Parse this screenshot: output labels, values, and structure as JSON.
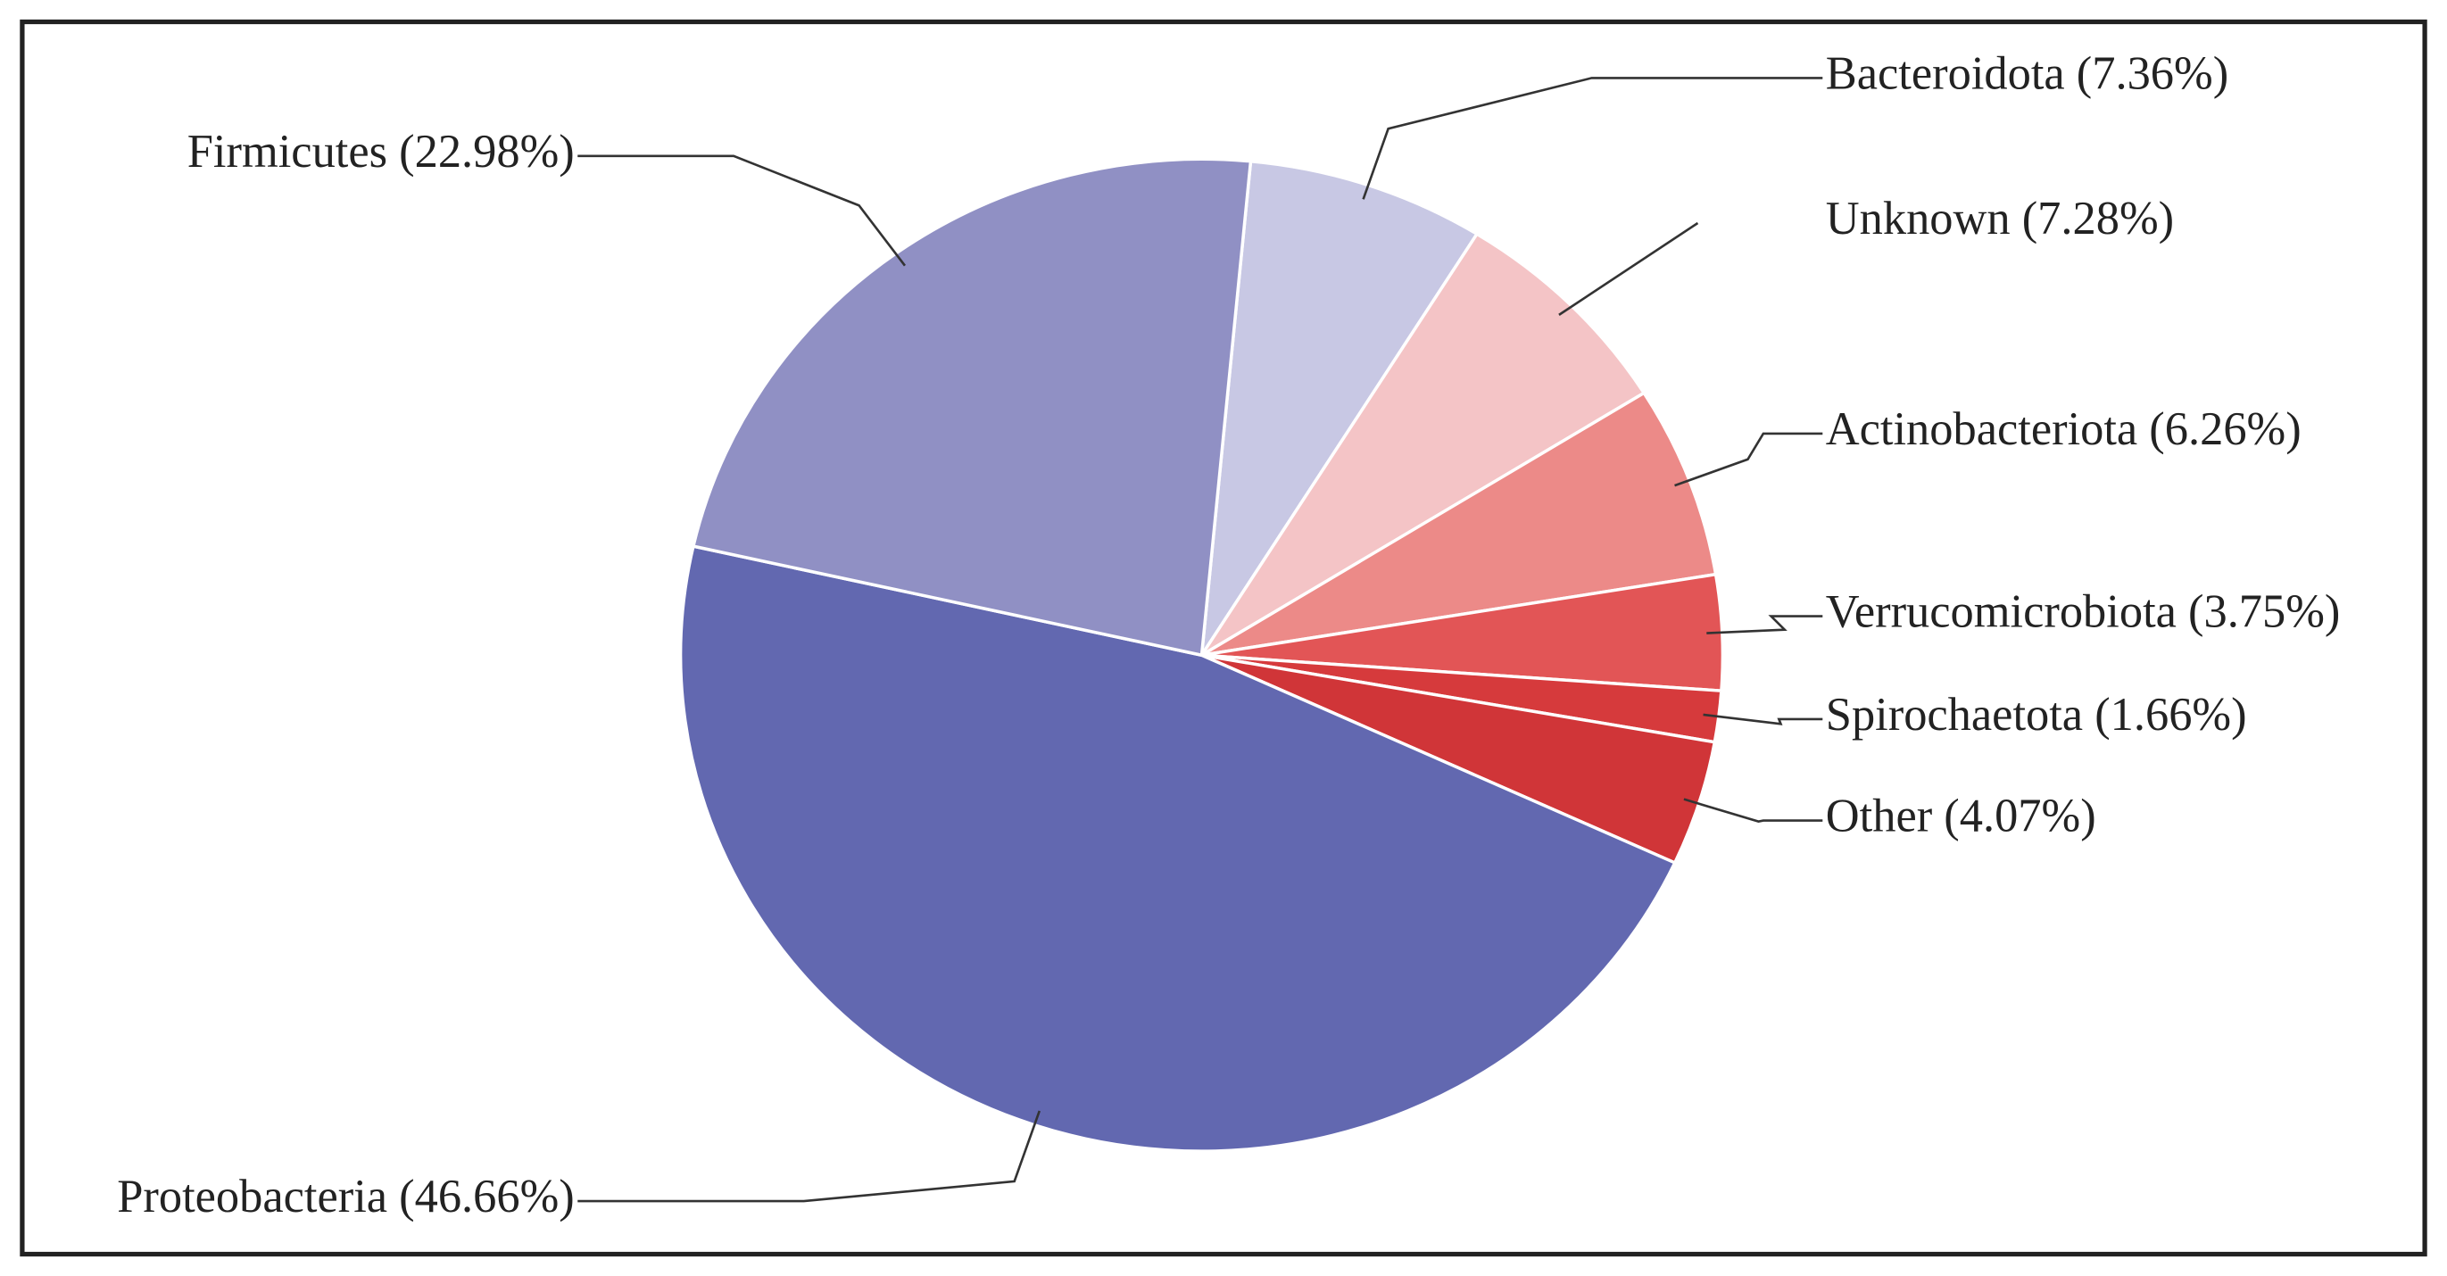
{
  "chart_data": {
    "type": "pie",
    "categories": [
      "Bacteroidota (7.36%)",
      "Unknown (7.28%)",
      "Actinobacteriota (6.26%)",
      "Verrucomicrobiota (3.75%)",
      "Spirochaetota (1.66%)",
      "Other (4.07%)",
      "Proteobacteria (46.66%)",
      "Firmicutes (22.98%)"
    ],
    "values": [
      7.36,
      7.28,
      6.26,
      3.75,
      1.66,
      4.07,
      46.66,
      22.98
    ],
    "colors": [
      "#c8c8e4",
      "#f4c4c6",
      "#ec8a88",
      "#e25556",
      "#d63a3c",
      "#d03538",
      "#6268b0",
      "#9090c4"
    ]
  }
}
